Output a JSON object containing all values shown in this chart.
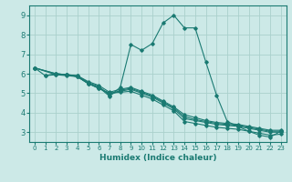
{
  "title": "",
  "xlabel": "Humidex (Indice chaleur)",
  "ylabel": "",
  "xlim": [
    -0.5,
    23.5
  ],
  "ylim": [
    2.5,
    9.5
  ],
  "yticks": [
    3,
    4,
    5,
    6,
    7,
    8,
    9
  ],
  "xticks": [
    0,
    1,
    2,
    3,
    4,
    5,
    6,
    7,
    8,
    9,
    10,
    11,
    12,
    13,
    14,
    15,
    16,
    17,
    18,
    19,
    20,
    21,
    22,
    23
  ],
  "bg_color": "#cce9e7",
  "grid_color": "#aad0cc",
  "line_color": "#1a7a72",
  "lines": [
    [
      0,
      6.3,
      1,
      5.9,
      2,
      6.0,
      3,
      5.95,
      4,
      5.85,
      5,
      5.5,
      6,
      5.3,
      7,
      4.85,
      8,
      5.3,
      9,
      7.5,
      10,
      7.2,
      11,
      7.55,
      12,
      8.6,
      13,
      9.0,
      14,
      8.35,
      15,
      8.35,
      16,
      6.6,
      17,
      4.9,
      18,
      3.55,
      19,
      3.3,
      20,
      3.05,
      21,
      2.85,
      22,
      2.75,
      23,
      3.05
    ],
    [
      0,
      6.3,
      2,
      5.95,
      3,
      5.9,
      4,
      5.85,
      5,
      5.5,
      6,
      5.25,
      7,
      5.0,
      8,
      5.1,
      9,
      5.2,
      10,
      5.0,
      11,
      4.8,
      12,
      4.5,
      13,
      4.2,
      14,
      3.7,
      15,
      3.6,
      16,
      3.5,
      17,
      3.4,
      18,
      3.35,
      19,
      3.3,
      20,
      3.2,
      21,
      3.1,
      22,
      3.0,
      23,
      3.0
    ],
    [
      0,
      6.3,
      2,
      6.0,
      3,
      5.95,
      4,
      5.9,
      5,
      5.55,
      6,
      5.35,
      7,
      4.9,
      8,
      5.15,
      9,
      5.25,
      10,
      5.05,
      11,
      4.85,
      12,
      4.55,
      13,
      4.25,
      14,
      3.8,
      15,
      3.65,
      16,
      3.55,
      17,
      3.45,
      18,
      3.4,
      19,
      3.35,
      20,
      3.25,
      21,
      3.15,
      22,
      3.05,
      23,
      3.05
    ],
    [
      0,
      6.3,
      2,
      6.0,
      3,
      5.95,
      4,
      5.9,
      5,
      5.6,
      6,
      5.4,
      7,
      5.05,
      8,
      5.2,
      9,
      5.3,
      10,
      5.1,
      11,
      4.9,
      12,
      4.6,
      13,
      4.3,
      14,
      3.9,
      15,
      3.75,
      16,
      3.6,
      17,
      3.5,
      18,
      3.45,
      19,
      3.4,
      20,
      3.3,
      21,
      3.2,
      22,
      3.1,
      23,
      3.1
    ],
    [
      1,
      5.9,
      2,
      5.95,
      3,
      5.95,
      4,
      5.85,
      5,
      5.5,
      6,
      5.25,
      7,
      5.0,
      8,
      5.05,
      9,
      5.1,
      10,
      4.9,
      11,
      4.7,
      12,
      4.4,
      13,
      4.1,
      14,
      3.55,
      15,
      3.45,
      16,
      3.35,
      17,
      3.25,
      18,
      3.2,
      19,
      3.15,
      20,
      3.05,
      21,
      2.95,
      22,
      2.85,
      23,
      2.9
    ]
  ]
}
